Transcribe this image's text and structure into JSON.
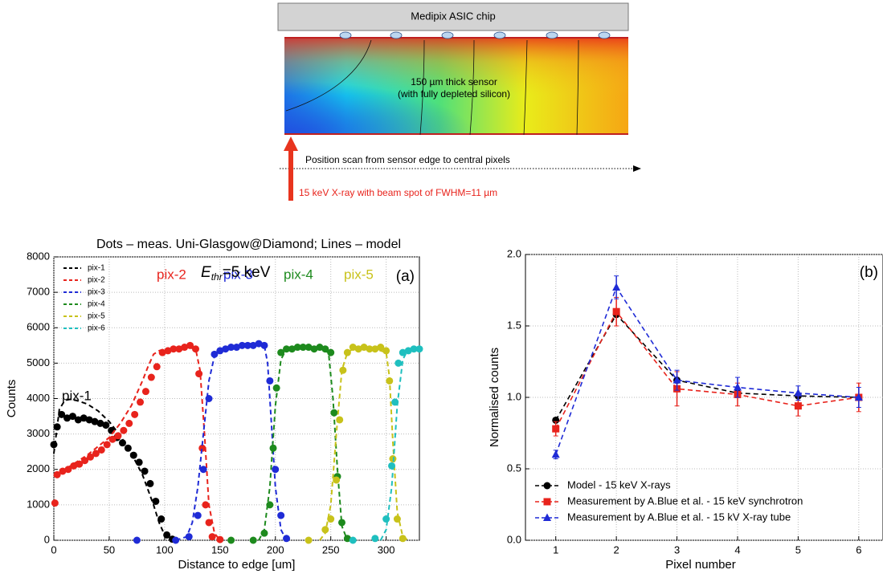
{
  "diagram": {
    "chip_label": "Medipix ASIC chip",
    "sensor_label": [
      "150 µm thick sensor",
      "(with fully depleted silicon)"
    ],
    "scan_label": "Position scan from sensor edge to central pixels",
    "beam_label": "15 keV X-ray with beam spot of FWHM=11 µm"
  },
  "chart_data": [
    {
      "type": "scatter",
      "title": "Dots – meas. Uni-Glasgow@Diamond; Lines – model",
      "xlabel": "Distance to edge [um]",
      "ylabel": "Counts",
      "annotations": [
        [
          "E",
          "thr",
          "=5 keV"
        ],
        "(a)"
      ],
      "xlim": [
        0,
        330
      ],
      "ylim": [
        0,
        8000
      ],
      "xticks": [
        0,
        50,
        100,
        150,
        200,
        250,
        300
      ],
      "yticks": [
        0,
        1000,
        2000,
        3000,
        4000,
        5000,
        6000,
        7000,
        8000
      ],
      "grid": true,
      "legend": "upper-left",
      "series": [
        {
          "name": "pix-1",
          "color": "#000000",
          "x": [
            0,
            3,
            7,
            12,
            17,
            22,
            27,
            32,
            37,
            42,
            47,
            52,
            57,
            62,
            67,
            72,
            77,
            82,
            87,
            92,
            97,
            102,
            107
          ],
          "values": [
            2700,
            3200,
            3550,
            3450,
            3500,
            3400,
            3450,
            3400,
            3350,
            3300,
            3250,
            3100,
            2900,
            2750,
            2600,
            2400,
            2200,
            1950,
            1600,
            1100,
            600,
            150,
            30
          ],
          "model_x": [
            0,
            5,
            10,
            15,
            20,
            30,
            40,
            50,
            60,
            70,
            80,
            90,
            95,
            100,
            105,
            110
          ],
          "model_values": [
            2450,
            3700,
            3950,
            3980,
            3950,
            3850,
            3650,
            3350,
            2950,
            2450,
            1850,
            1000,
            500,
            150,
            30,
            0
          ]
        },
        {
          "name": "pix-2",
          "color": "#e8231c",
          "x": [
            1,
            3,
            8,
            13,
            18,
            23,
            28,
            33,
            38,
            43,
            48,
            53,
            58,
            63,
            68,
            73,
            78,
            83,
            88,
            93,
            98,
            103,
            108,
            113,
            118,
            123,
            128,
            131,
            134,
            137,
            140,
            143,
            150
          ],
          "values": [
            1050,
            1850,
            1950,
            2000,
            2100,
            2150,
            2250,
            2350,
            2450,
            2550,
            2700,
            2850,
            2950,
            3100,
            3300,
            3550,
            3900,
            4200,
            4600,
            4900,
            5300,
            5350,
            5400,
            5400,
            5450,
            5500,
            5400,
            4700,
            2600,
            1000,
            500,
            100,
            20
          ],
          "model_x": [
            0,
            10,
            20,
            30,
            40,
            50,
            60,
            70,
            80,
            85,
            90,
            95,
            100,
            110,
            120,
            128,
            132,
            136,
            140,
            145,
            150
          ],
          "model_values": [
            1800,
            2000,
            2200,
            2400,
            2650,
            2900,
            3300,
            3800,
            4500,
            4900,
            5250,
            5350,
            5400,
            5400,
            5450,
            5400,
            4800,
            3000,
            1000,
            200,
            0
          ]
        },
        {
          "name": "pix-3",
          "color": "#1f2bd6",
          "x": [
            75,
            110,
            122,
            130,
            135,
            140,
            145,
            150,
            155,
            160,
            165,
            170,
            175,
            180,
            185,
            190,
            195,
            200,
            205,
            210
          ],
          "values": [
            0,
            0,
            100,
            700,
            2000,
            4000,
            5250,
            5350,
            5400,
            5450,
            5450,
            5500,
            5500,
            5500,
            5550,
            5500,
            4500,
            2000,
            700,
            50
          ],
          "model_x": [
            110,
            120,
            125,
            130,
            135,
            140,
            145,
            150,
            160,
            180,
            190,
            193,
            196,
            200,
            205,
            210
          ],
          "model_values": [
            0,
            100,
            500,
            1500,
            3000,
            4500,
            5200,
            5400,
            5450,
            5500,
            5500,
            5000,
            3500,
            1500,
            300,
            0
          ]
        },
        {
          "name": "pix-4",
          "color": "#1d8a1d",
          "x": [
            160,
            180,
            190,
            195,
            198,
            201,
            205,
            210,
            215,
            220,
            225,
            230,
            235,
            240,
            245,
            250,
            253,
            256,
            260,
            265
          ],
          "values": [
            0,
            0,
            200,
            1000,
            2600,
            4300,
            5300,
            5400,
            5400,
            5450,
            5450,
            5450,
            5400,
            5450,
            5400,
            5300,
            3600,
            1800,
            500,
            50
          ],
          "model_x": [
            185,
            190,
            195,
            200,
            205,
            210,
            220,
            240,
            248,
            252,
            256,
            260,
            265
          ],
          "model_values": [
            0,
            300,
            1500,
            3800,
            5100,
            5400,
            5400,
            5400,
            5300,
            4000,
            2000,
            400,
            0
          ]
        },
        {
          "name": "pix-5",
          "color": "#c8c21a",
          "x": [
            230,
            245,
            250,
            255,
            258,
            261,
            265,
            270,
            275,
            280,
            285,
            290,
            295,
            300,
            303,
            306,
            310,
            315
          ],
          "values": [
            0,
            300,
            600,
            1700,
            3400,
            4800,
            5300,
            5450,
            5400,
            5450,
            5400,
            5400,
            5450,
            5350,
            4500,
            2300,
            600,
            50
          ],
          "model_x": [
            240,
            245,
            250,
            255,
            260,
            265,
            270,
            290,
            300,
            303,
            306,
            310,
            315,
            320
          ],
          "model_values": [
            0,
            200,
            1000,
            3000,
            4800,
            5300,
            5400,
            5400,
            5300,
            4600,
            2800,
            800,
            100,
            0
          ]
        },
        {
          "name": "pix-6",
          "color": "#1fbfbf",
          "x": [
            270,
            290,
            300,
            305,
            308,
            311,
            315,
            320,
            325,
            330
          ],
          "values": [
            0,
            50,
            600,
            2100,
            3900,
            5000,
            5300,
            5350,
            5400,
            5400
          ],
          "model_x": [
            295,
            300,
            305,
            310,
            315,
            320,
            330
          ],
          "model_values": [
            0,
            300,
            1500,
            3800,
            5100,
            5400,
            5400
          ]
        }
      ]
    },
    {
      "type": "line",
      "xlabel": "Pixel number",
      "ylabel": "Normalised counts",
      "annotations": [
        "(b)"
      ],
      "x": [
        1,
        2,
        3,
        4,
        5,
        6
      ],
      "xlim": [
        0.5,
        6.4
      ],
      "ylim": [
        0,
        2
      ],
      "xticks": [
        1,
        2,
        3,
        4,
        5,
        6
      ],
      "yticks": [
        {
          "value": 0,
          "label": "0.0"
        },
        {
          "value": 0.5,
          "label": "0.5"
        },
        {
          "value": 1,
          "label": "1.0"
        },
        {
          "value": 1.5,
          "label": "1.5"
        },
        {
          "value": 2,
          "label": "2.0"
        }
      ],
      "grid": true,
      "legend": "lower-left",
      "series": [
        {
          "name": "Model - 15 keV X-rays",
          "color": "#000000",
          "marker": "circle",
          "values": [
            0.84,
            1.58,
            1.12,
            1.03,
            1.01,
            1.0
          ]
        },
        {
          "name": "Measurement by A.Blue et al. - 15 keV synchrotron",
          "color": "#e8231c",
          "marker": "square",
          "values": [
            0.78,
            1.6,
            1.06,
            1.02,
            0.94,
            1.0
          ],
          "errors": [
            0.05,
            0.1,
            0.12,
            0.08,
            0.07,
            0.1
          ]
        },
        {
          "name": "Measurement by A.Blue et al. - 15 kV X-ray tube",
          "color": "#1f2bd6",
          "marker": "triangle",
          "values": [
            0.6,
            1.77,
            1.12,
            1.07,
            1.03,
            1.0
          ],
          "errors": [
            0.03,
            0.08,
            0.07,
            0.07,
            0.05,
            0.07
          ]
        }
      ]
    }
  ]
}
